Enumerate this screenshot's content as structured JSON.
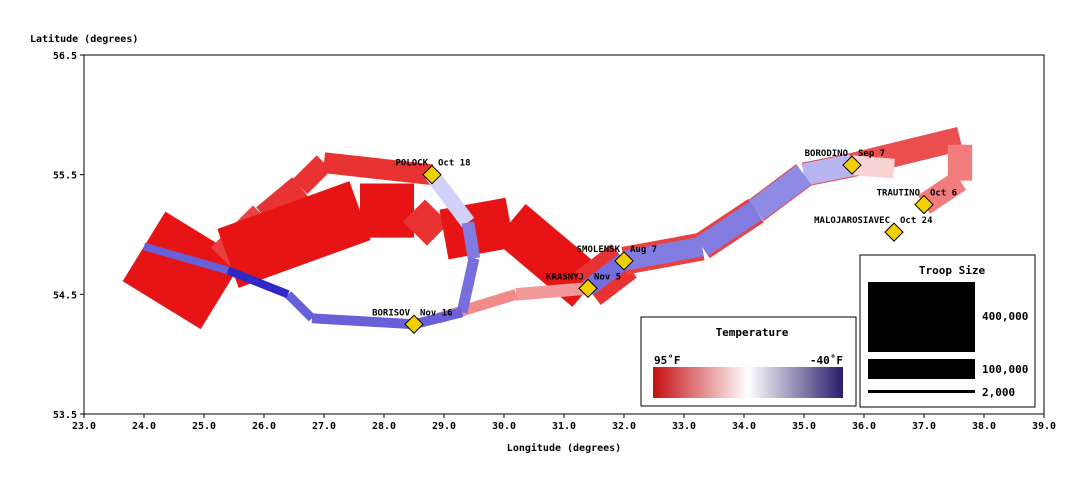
{
  "chart_data": {
    "type": "flow-map",
    "xlabel": "Longitude (degrees)",
    "ylabel": "Latitude (degrees)",
    "xlim": [
      23.0,
      39.0
    ],
    "ylim": [
      53.5,
      56.5
    ],
    "x_ticks": [
      "23.0",
      "24.0",
      "25.0",
      "26.0",
      "27.0",
      "28.0",
      "29.0",
      "30.0",
      "31.0",
      "32.0",
      "33.0",
      "34.0",
      "35.0",
      "36.0",
      "37.0",
      "38.0",
      "39.0"
    ],
    "y_ticks": [
      "53.5",
      "54.5",
      "55.5",
      "56.5"
    ],
    "cities": [
      {
        "name": "POLOCK",
        "date": "Oct 18",
        "lon": 28.8,
        "lat": 55.5
      },
      {
        "name": "BORODINO",
        "date": "Sep 7",
        "lon": 35.8,
        "lat": 55.58
      },
      {
        "name": "TRAUTINO",
        "date": "Oct 6",
        "lon": 37.0,
        "lat": 55.25
      },
      {
        "name": "MALOJAROSIAVEC",
        "date": "Oct 24",
        "lon": 36.5,
        "lat": 55.02
      },
      {
        "name": "SMOLENSK",
        "date": "Aug 7",
        "lon": 32.0,
        "lat": 54.78
      },
      {
        "name": "KRASNYJ",
        "date": "Nov 5",
        "lon": 31.4,
        "lat": 54.55
      },
      {
        "name": "BORISOV",
        "date": "Nov 16",
        "lon": 28.5,
        "lat": 54.25
      }
    ],
    "advance_segments": [
      {
        "from": [
          24.0,
          54.9
        ],
        "to": [
          25.3,
          54.5
        ],
        "size": 340000,
        "temp": 95
      },
      {
        "from": [
          25.3,
          54.8
        ],
        "to": [
          26.0,
          55.15
        ],
        "size": 50000,
        "temp": 80
      },
      {
        "from": [
          26.0,
          55.15
        ],
        "to": [
          26.6,
          55.4
        ],
        "size": 30000,
        "temp": 85
      },
      {
        "from": [
          26.6,
          55.4
        ],
        "to": [
          27.0,
          55.6
        ],
        "size": 22000,
        "temp": 85
      },
      {
        "from": [
          27.0,
          55.6
        ],
        "to": [
          28.8,
          55.5
        ],
        "size": 22000,
        "temp": 85
      },
      {
        "from": [
          25.4,
          54.8
        ],
        "to": [
          27.6,
          55.2
        ],
        "size": 200000,
        "temp": 95
      },
      {
        "from": [
          27.6,
          55.2
        ],
        "to": [
          28.5,
          55.2
        ],
        "size": 150000,
        "temp": 95
      },
      {
        "from": [
          28.5,
          55.2
        ],
        "to": [
          28.9,
          55.0
        ],
        "size": 50000,
        "temp": 85
      },
      {
        "from": [
          29.0,
          55.0
        ],
        "to": [
          30.1,
          55.1
        ],
        "size": 130000,
        "temp": 95
      },
      {
        "from": [
          30.1,
          55.1
        ],
        "to": [
          31.4,
          54.55
        ],
        "size": 120000,
        "temp": 95
      },
      {
        "from": [
          31.4,
          54.55
        ],
        "to": [
          32.0,
          54.78
        ],
        "size": 90000,
        "temp": 85
      },
      {
        "from": [
          32.0,
          54.78
        ],
        "to": [
          33.3,
          54.9
        ],
        "size": 40000,
        "temp": 80
      },
      {
        "from": [
          33.3,
          54.9
        ],
        "to": [
          34.2,
          55.2
        ],
        "size": 40000,
        "temp": 80
      },
      {
        "from": [
          34.2,
          55.2
        ],
        "to": [
          35.0,
          55.5
        ],
        "size": 35000,
        "temp": 80
      },
      {
        "from": [
          35.0,
          55.5
        ],
        "to": [
          35.8,
          55.58
        ],
        "size": 30000,
        "temp": 78
      },
      {
        "from": [
          35.8,
          55.58
        ],
        "to": [
          37.6,
          55.8
        ],
        "size": 30000,
        "temp": 75
      },
      {
        "from": [
          37.6,
          55.75
        ],
        "to": [
          37.6,
          55.45
        ],
        "size": 30000,
        "temp": 60
      }
    ],
    "retreat_segments": [
      {
        "from": [
          37.6,
          55.45
        ],
        "to": [
          37.0,
          55.25
        ],
        "size": 25000,
        "temp": 60
      },
      {
        "from": [
          36.5,
          55.55
        ],
        "to": [
          35.8,
          55.58
        ],
        "size": 20000,
        "temp": 30
      },
      {
        "from": [
          35.8,
          55.58
        ],
        "to": [
          35.0,
          55.5
        ],
        "size": 25000,
        "temp": 10
      },
      {
        "from": [
          35.0,
          55.5
        ],
        "to": [
          34.2,
          55.2
        ],
        "size": 30000,
        "temp": -5
      },
      {
        "from": [
          34.2,
          55.2
        ],
        "to": [
          33.3,
          54.9
        ],
        "size": 25000,
        "temp": -10
      },
      {
        "from": [
          33.3,
          54.9
        ],
        "to": [
          32.0,
          54.78
        ],
        "size": 20000,
        "temp": -10
      },
      {
        "from": [
          32.0,
          54.78
        ],
        "to": [
          31.4,
          54.55
        ],
        "size": 15000,
        "temp": -15
      },
      {
        "from": [
          31.4,
          54.55
        ],
        "to": [
          30.2,
          54.5
        ],
        "size": 8000,
        "temp": 50
      },
      {
        "from": [
          30.2,
          54.5
        ],
        "to": [
          28.9,
          54.3
        ],
        "size": 6000,
        "temp": 55
      },
      {
        "from": [
          28.8,
          55.5
        ],
        "to": [
          29.4,
          55.1
        ],
        "size": 12000,
        "temp": 20
      },
      {
        "from": [
          29.4,
          55.1
        ],
        "to": [
          29.5,
          54.8
        ],
        "size": 8000,
        "temp": -10
      },
      {
        "from": [
          29.5,
          54.8
        ],
        "to": [
          29.3,
          54.35
        ],
        "size": 6000,
        "temp": -15
      },
      {
        "from": [
          29.3,
          54.35
        ],
        "to": [
          28.5,
          54.25
        ],
        "size": 5000,
        "temp": -20
      },
      {
        "from": [
          28.5,
          54.25
        ],
        "to": [
          26.8,
          54.3
        ],
        "size": 5000,
        "temp": -20
      },
      {
        "from": [
          26.8,
          54.3
        ],
        "to": [
          26.4,
          54.5
        ],
        "size": 4000,
        "temp": -20
      },
      {
        "from": [
          26.4,
          54.5
        ],
        "to": [
          25.4,
          54.7
        ],
        "size": 3500,
        "temp": -40
      },
      {
        "from": [
          25.4,
          54.7
        ],
        "to": [
          24.0,
          54.9
        ],
        "size": 3000,
        "temp": -20
      }
    ],
    "temperature_legend": {
      "title": "Temperature",
      "min_label": "95˚F",
      "max_label": "-40˚F",
      "colors": [
        "#cc1111",
        "#ffffff",
        "#2a1c6a"
      ]
    },
    "size_legend": {
      "title": "Troop Size",
      "entries": [
        {
          "label": "400,000",
          "value": 400000
        },
        {
          "label": "100,000",
          "value": 100000
        },
        {
          "label": "2,000",
          "value": 2000
        }
      ]
    }
  }
}
